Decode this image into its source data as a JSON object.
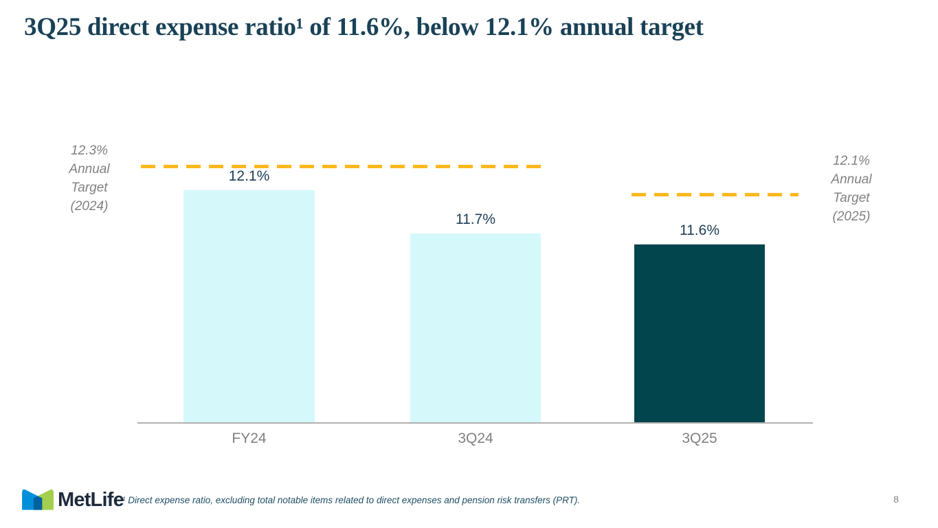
{
  "slide": {
    "title": "3Q25 direct expense ratio¹ of 11.6%, below 12.1% annual target",
    "footnote": "¹ Direct expense ratio, excluding total notable items related to direct expenses and pension risk transfers (PRT).",
    "page_number": "8",
    "logo": {
      "wordmark": "MetLife"
    }
  },
  "chart_data": {
    "type": "bar",
    "title": "",
    "xlabel": "",
    "ylabel": "",
    "categories": [
      "FY24",
      "3Q24",
      "3Q25"
    ],
    "values": [
      12.1,
      11.7,
      11.6
    ],
    "unit": "percent",
    "data_labels": [
      "12.1%",
      "11.7%",
      "11.6%"
    ],
    "bar_colors": [
      "#D5F8FB",
      "#D5F8FB",
      "#02454D"
    ],
    "grid": "off",
    "y_axis_visible": false,
    "legend": "none",
    "ylim_implied": [
      9.95,
      12.55
    ],
    "target_lines": [
      {
        "value": 12.3,
        "style": "dashed",
        "color": "#FDB81E",
        "applies_to": [
          "FY24",
          "3Q24"
        ],
        "label_position": "left",
        "label_lines": [
          "12.3%",
          "Annual",
          "Target",
          "(2024)"
        ]
      },
      {
        "value": 12.1,
        "style": "dashed",
        "color": "#FDB81E",
        "applies_to": [
          "3Q25"
        ],
        "label_position": "right",
        "label_lines": [
          "12.1%",
          "Annual",
          "Target",
          "(2025)"
        ]
      }
    ]
  },
  "colors": {
    "title_navy": "#1A4257",
    "label_navy": "#1D3C55",
    "bar_light": "#D5F8FB",
    "bar_dark": "#02454D",
    "gold": "#FDB81E",
    "gray_text": "#808080",
    "axis_gray": "#B0B0B0",
    "footnote_blue": "#1F4E63",
    "logo_navy": "#1E2A3C",
    "logo_blue": "#0090DA",
    "logo_green": "#A4CE4E",
    "logo_overlap_blue": "#0061A0"
  }
}
